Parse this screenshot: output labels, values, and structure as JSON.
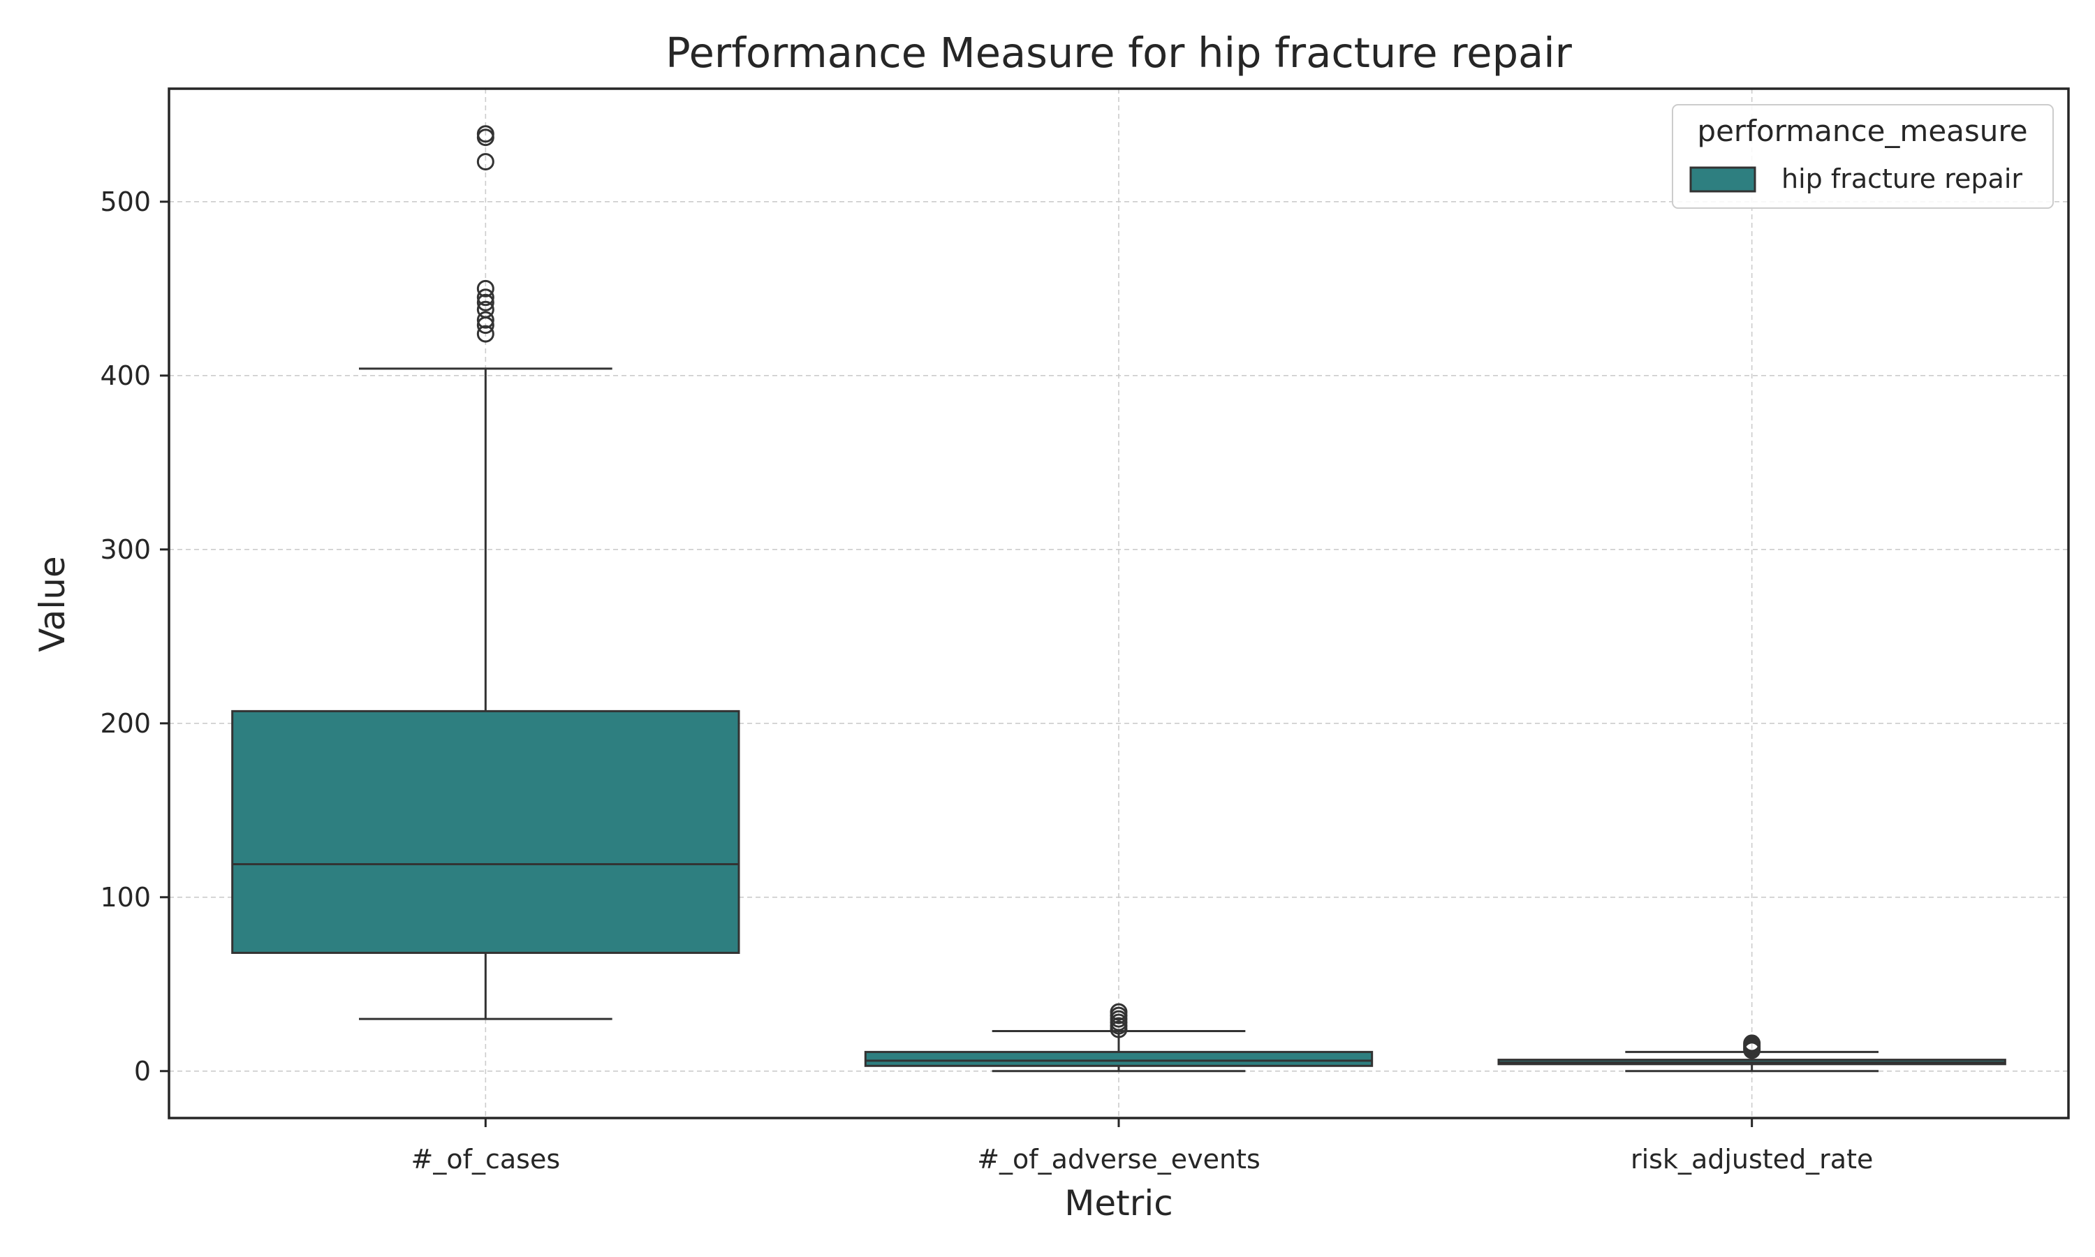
{
  "chart_data": {
    "type": "box",
    "title": "Performance Measure for hip fracture repair",
    "xlabel": "Metric",
    "ylabel": "Value",
    "ylim": [
      -27,
      565
    ],
    "yticks": [
      0,
      100,
      200,
      300,
      400,
      500
    ],
    "grid": true,
    "legend": {
      "title": "performance_measure",
      "placement": "top-right",
      "entries": [
        {
          "label": "hip fracture repair",
          "color": "#2e7f80"
        }
      ]
    },
    "categories": [
      "#_of_cases",
      "#_of_adverse_events",
      "risk_adjusted_rate"
    ],
    "boxes": [
      {
        "category": "#_of_cases",
        "whisker_low": 30,
        "q1": 68,
        "median": 119,
        "q3": 207,
        "whisker_high": 404,
        "outliers": [
          424,
          429,
          432,
          438,
          442,
          445,
          450,
          523,
          537,
          539
        ]
      },
      {
        "category": "#_of_adverse_events",
        "whisker_low": 0,
        "q1": 3,
        "median": 6,
        "q3": 11,
        "whisker_high": 23,
        "outliers": [
          24,
          26,
          28,
          30,
          32,
          34
        ]
      },
      {
        "category": "risk_adjusted_rate",
        "whisker_low": 0,
        "q1": 4,
        "median": 5,
        "q3": 6.5,
        "whisker_high": 11,
        "outliers": [
          12,
          13,
          14,
          15,
          16
        ]
      }
    ],
    "colors": {
      "box_fill": "#2e7f80",
      "line": "#333333",
      "grid": "#cccccc",
      "frame": "#262626"
    }
  }
}
